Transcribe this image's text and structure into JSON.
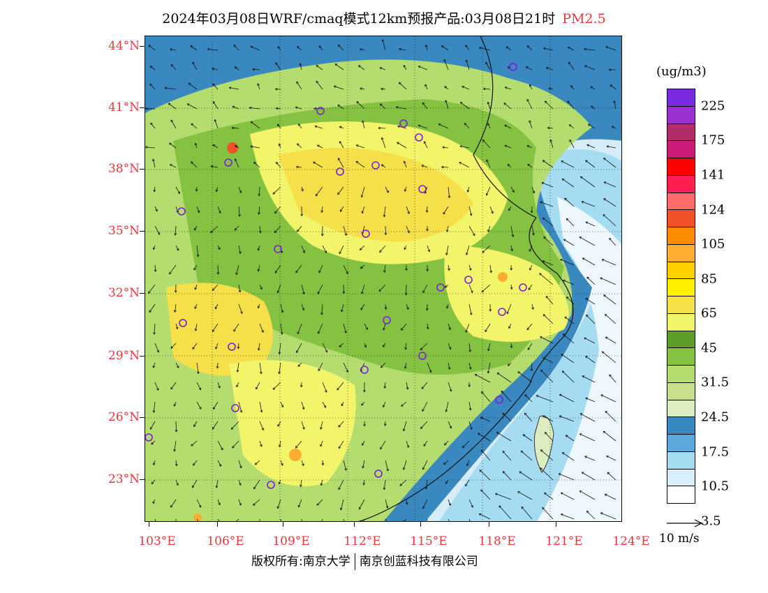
{
  "title": {
    "main": "2024年03月08日WRF/cmaq模式12km预报产品:03月08日21时",
    "variable": "PM2.5"
  },
  "latitude_labels": [
    "44°N",
    "41°N",
    "38°N",
    "35°N",
    "32°N",
    "29°N",
    "26°N",
    "23°N"
  ],
  "longitude_labels": [
    "103°E",
    "106°E",
    "109°E",
    "112°E",
    "115°E",
    "118°E",
    "121°E",
    "124°E"
  ],
  "colorbar": {
    "unit": "(ug/m3)",
    "labels": [
      "225",
      "175",
      "141",
      "124",
      "105",
      "85",
      "65",
      "45",
      "31.5",
      "24.5",
      "17.5",
      "10.5",
      "3.5"
    ],
    "colors": [
      "#7a2be0",
      "#9b30d0",
      "#b02c6a",
      "#cc1a7a",
      "#ff0000",
      "#ff1e50",
      "#ff6a6a",
      "#f0502a",
      "#ff8c00",
      "#ffad30",
      "#ffd000",
      "#fff000",
      "#f5e04a",
      "#f2f56a",
      "#5c9e2c",
      "#86c242",
      "#b5dc6e",
      "#c8e08a",
      "#dcedc0",
      "#3a88c0",
      "#5aa8dc",
      "#a6dcf2",
      "#d8eef8",
      "#ffffff"
    ]
  },
  "wind_reference": {
    "label": "10 m/s"
  },
  "copyright": {
    "left": "版权所有:南京大学",
    "right": "南京创蓝科技有限公司"
  }
}
